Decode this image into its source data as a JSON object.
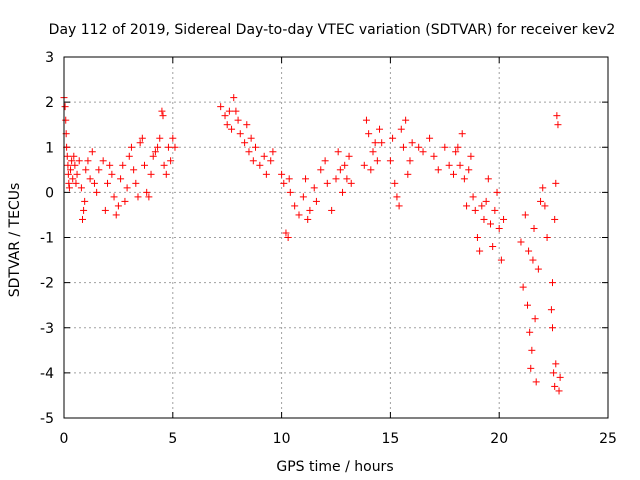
{
  "chart_data": {
    "type": "scatter",
    "title": "Day 112 of 2019, Sidereal Day-to-day VTEC variation (SDTVAR) for receiver kev2",
    "xlabel": "GPS time / hours",
    "ylabel": "SDTVAR / TECUs",
    "xlim": [
      0,
      25
    ],
    "ylim": [
      -5,
      3
    ],
    "xticks": [
      0,
      5,
      10,
      15,
      20,
      25
    ],
    "yticks": [
      -5,
      -4,
      -3,
      -2,
      -1,
      0,
      1,
      2,
      3
    ],
    "xtick_labels": [
      "0",
      "5",
      "10",
      "15",
      "20",
      "25"
    ],
    "ytick_labels": [
      "-5",
      "-4",
      "-3",
      "-2",
      "-1",
      "0",
      "1",
      "2",
      "3"
    ],
    "grid": true,
    "marker": "+",
    "color": "#ff0000",
    "series": [
      {
        "name": "SDTVAR",
        "points": [
          [
            0.0,
            2.1
          ],
          [
            0.05,
            1.9
          ],
          [
            0.08,
            1.6
          ],
          [
            0.1,
            1.3
          ],
          [
            0.12,
            1.0
          ],
          [
            0.15,
            0.8
          ],
          [
            0.18,
            0.6
          ],
          [
            0.2,
            0.4
          ],
          [
            0.22,
            0.2
          ],
          [
            0.25,
            0.1
          ],
          [
            0.3,
            0.5
          ],
          [
            0.35,
            0.7
          ],
          [
            0.4,
            0.3
          ],
          [
            0.45,
            0.8
          ],
          [
            0.5,
            0.6
          ],
          [
            0.55,
            0.2
          ],
          [
            0.6,
            0.4
          ],
          [
            0.7,
            0.7
          ],
          [
            0.8,
            0.1
          ],
          [
            0.85,
            -0.6
          ],
          [
            0.9,
            -0.4
          ],
          [
            0.95,
            -0.2
          ],
          [
            1.0,
            0.5
          ],
          [
            1.1,
            0.7
          ],
          [
            1.2,
            0.3
          ],
          [
            1.3,
            0.9
          ],
          [
            1.4,
            0.2
          ],
          [
            1.5,
            0.0
          ],
          [
            1.6,
            0.5
          ],
          [
            1.8,
            0.7
          ],
          [
            1.9,
            -0.4
          ],
          [
            2.0,
            0.2
          ],
          [
            2.1,
            0.6
          ],
          [
            2.2,
            0.4
          ],
          [
            2.3,
            -0.1
          ],
          [
            2.4,
            -0.5
          ],
          [
            2.5,
            -0.3
          ],
          [
            2.6,
            0.3
          ],
          [
            2.7,
            0.6
          ],
          [
            2.8,
            -0.2
          ],
          [
            2.9,
            0.1
          ],
          [
            3.0,
            0.8
          ],
          [
            3.1,
            1.0
          ],
          [
            3.2,
            0.5
          ],
          [
            3.3,
            0.2
          ],
          [
            3.4,
            -0.1
          ],
          [
            3.5,
            1.1
          ],
          [
            3.6,
            1.2
          ],
          [
            3.7,
            0.6
          ],
          [
            3.8,
            0.0
          ],
          [
            3.9,
            -0.1
          ],
          [
            4.0,
            0.4
          ],
          [
            4.1,
            0.8
          ],
          [
            4.2,
            0.9
          ],
          [
            4.3,
            1.0
          ],
          [
            4.4,
            1.2
          ],
          [
            4.5,
            1.8
          ],
          [
            4.55,
            1.7
          ],
          [
            4.6,
            0.6
          ],
          [
            4.7,
            0.4
          ],
          [
            4.8,
            1.0
          ],
          [
            4.9,
            0.7
          ],
          [
            5.0,
            1.2
          ],
          [
            5.1,
            1.0
          ],
          [
            7.2,
            1.9
          ],
          [
            7.4,
            1.7
          ],
          [
            7.5,
            1.5
          ],
          [
            7.6,
            1.8
          ],
          [
            7.7,
            1.4
          ],
          [
            7.8,
            2.1
          ],
          [
            7.9,
            1.8
          ],
          [
            8.0,
            1.6
          ],
          [
            8.1,
            1.3
          ],
          [
            8.3,
            1.1
          ],
          [
            8.4,
            1.5
          ],
          [
            8.5,
            0.9
          ],
          [
            8.6,
            1.2
          ],
          [
            8.7,
            0.7
          ],
          [
            8.8,
            1.0
          ],
          [
            9.0,
            0.6
          ],
          [
            9.2,
            0.8
          ],
          [
            9.3,
            0.4
          ],
          [
            9.5,
            0.7
          ],
          [
            9.6,
            0.9
          ],
          [
            10.0,
            0.4
          ],
          [
            10.1,
            0.2
          ],
          [
            10.2,
            -0.9
          ],
          [
            10.3,
            -1.0
          ],
          [
            10.35,
            0.3
          ],
          [
            10.4,
            0.0
          ],
          [
            10.6,
            -0.3
          ],
          [
            10.8,
            -0.5
          ],
          [
            11.0,
            -0.1
          ],
          [
            11.1,
            0.3
          ],
          [
            11.2,
            -0.6
          ],
          [
            11.3,
            -0.4
          ],
          [
            11.5,
            0.1
          ],
          [
            11.6,
            -0.2
          ],
          [
            11.8,
            0.5
          ],
          [
            12.0,
            0.7
          ],
          [
            12.1,
            0.2
          ],
          [
            12.3,
            -0.4
          ],
          [
            12.5,
            0.3
          ],
          [
            12.6,
            0.9
          ],
          [
            12.7,
            0.5
          ],
          [
            12.8,
            0.0
          ],
          [
            12.9,
            0.6
          ],
          [
            13.0,
            0.3
          ],
          [
            13.1,
            0.8
          ],
          [
            13.2,
            0.2
          ],
          [
            13.8,
            0.6
          ],
          [
            13.9,
            1.6
          ],
          [
            14.0,
            1.3
          ],
          [
            14.1,
            0.5
          ],
          [
            14.2,
            0.9
          ],
          [
            14.3,
            1.1
          ],
          [
            14.4,
            0.7
          ],
          [
            14.5,
            1.4
          ],
          [
            14.6,
            1.1
          ],
          [
            15.0,
            0.7
          ],
          [
            15.1,
            1.2
          ],
          [
            15.2,
            0.2
          ],
          [
            15.3,
            -0.1
          ],
          [
            15.4,
            -0.3
          ],
          [
            15.5,
            1.4
          ],
          [
            15.6,
            1.0
          ],
          [
            15.7,
            1.6
          ],
          [
            15.8,
            0.4
          ],
          [
            15.9,
            0.7
          ],
          [
            16.0,
            1.1
          ],
          [
            16.3,
            1.0
          ],
          [
            16.5,
            0.9
          ],
          [
            16.8,
            1.2
          ],
          [
            17.0,
            0.8
          ],
          [
            17.2,
            0.5
          ],
          [
            17.5,
            1.0
          ],
          [
            17.7,
            0.6
          ],
          [
            17.9,
            0.4
          ],
          [
            18.0,
            0.9
          ],
          [
            18.1,
            1.0
          ],
          [
            18.2,
            0.6
          ],
          [
            18.3,
            1.3
          ],
          [
            18.4,
            0.3
          ],
          [
            18.5,
            -0.3
          ],
          [
            18.6,
            0.5
          ],
          [
            18.7,
            0.8
          ],
          [
            18.8,
            -0.1
          ],
          [
            18.9,
            -0.4
          ],
          [
            19.0,
            -1.0
          ],
          [
            19.1,
            -1.3
          ],
          [
            19.2,
            -0.3
          ],
          [
            19.3,
            -0.6
          ],
          [
            19.4,
            -0.2
          ],
          [
            19.5,
            0.3
          ],
          [
            19.6,
            -0.7
          ],
          [
            19.7,
            -1.2
          ],
          [
            19.8,
            -0.4
          ],
          [
            19.9,
            0.0
          ],
          [
            20.0,
            -0.8
          ],
          [
            20.1,
            -1.5
          ],
          [
            20.2,
            -0.6
          ],
          [
            21.0,
            -1.1
          ],
          [
            21.1,
            -2.1
          ],
          [
            21.2,
            -0.5
          ],
          [
            21.3,
            -2.5
          ],
          [
            21.4,
            -3.1
          ],
          [
            21.45,
            -3.9
          ],
          [
            21.5,
            -3.5
          ],
          [
            21.55,
            -1.5
          ],
          [
            21.6,
            -0.8
          ],
          [
            21.7,
            -4.2
          ],
          [
            21.8,
            -1.7
          ],
          [
            21.9,
            -0.2
          ],
          [
            22.0,
            0.1
          ],
          [
            22.1,
            -0.3
          ],
          [
            22.2,
            -1.0
          ],
          [
            22.4,
            -2.6
          ],
          [
            22.45,
            -3.0
          ],
          [
            22.5,
            -4.0
          ],
          [
            22.55,
            -4.3
          ],
          [
            22.6,
            -3.8
          ],
          [
            22.65,
            1.7
          ],
          [
            22.7,
            1.5
          ],
          [
            22.75,
            -4.4
          ],
          [
            22.8,
            -4.1
          ],
          [
            22.6,
            0.2
          ],
          [
            22.55,
            -0.6
          ],
          [
            22.45,
            -2.0
          ],
          [
            21.35,
            -1.3
          ],
          [
            21.65,
            -2.8
          ]
        ]
      }
    ]
  }
}
